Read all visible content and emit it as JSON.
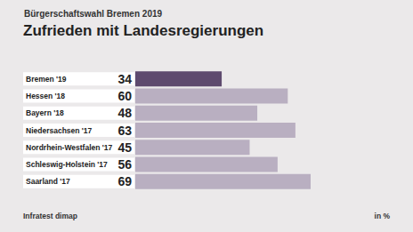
{
  "chart_data": {
    "type": "bar",
    "orientation": "horizontal",
    "subtitle": "Bürgerschaftswahl Bremen 2019",
    "title": "Zufrieden mit Landesregierungen",
    "categories": [
      "Bremen '19",
      "Hessen '18",
      "Bayern '18",
      "Niedersachsen '17",
      "Nordrhein-Westfalen '17",
      "Schleswig-Holstein '17",
      "Saarland '17"
    ],
    "values": [
      34,
      60,
      48,
      63,
      45,
      56,
      69
    ],
    "colors": [
      "#5e4a6e",
      "#b9afc1",
      "#b9afc1",
      "#b9afc1",
      "#b9afc1",
      "#b9afc1",
      "#b9afc1"
    ],
    "xlim": [
      0,
      69
    ],
    "data_labels": true,
    "tick_labels": "y",
    "grid": false,
    "source": "Infratest dimap",
    "unit": "in %"
  }
}
